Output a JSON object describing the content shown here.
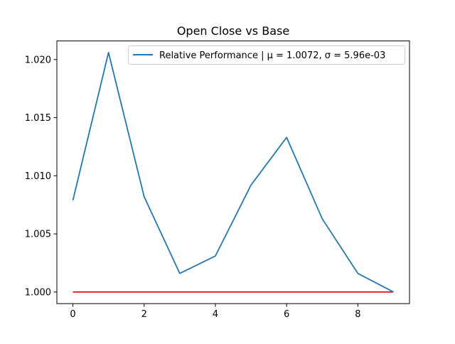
{
  "chart_data": {
    "type": "line",
    "title": "Open Close vs Base",
    "xlabel": "",
    "ylabel": "",
    "x": [
      0,
      1,
      2,
      3,
      4,
      5,
      6,
      7,
      8,
      9
    ],
    "xlim": [
      -0.45,
      9.45
    ],
    "ylim": [
      0.999,
      1.0216
    ],
    "xticks": [
      0,
      2,
      4,
      6,
      8
    ],
    "xtick_labels": [
      "0",
      "2",
      "4",
      "6",
      "8"
    ],
    "yticks": [
      1.0,
      1.005,
      1.01,
      1.015,
      1.02
    ],
    "ytick_labels": [
      "1.000",
      "1.005",
      "1.010",
      "1.015",
      "1.020"
    ],
    "grid": false,
    "legend_position": "top-right",
    "series": [
      {
        "name": "Relative Performance | μ = 1.0072, σ = 5.96e-03",
        "color": "#1f77b4",
        "values": [
          1.0079,
          1.0206,
          1.0082,
          1.0016,
          1.0031,
          1.0092,
          1.0133,
          1.0063,
          1.0016,
          1.0
        ]
      },
      {
        "color": "#e00000",
        "values": [
          1.0,
          1.0,
          1.0,
          1.0,
          1.0,
          1.0,
          1.0,
          1.0,
          1.0,
          1.0
        ]
      }
    ]
  }
}
